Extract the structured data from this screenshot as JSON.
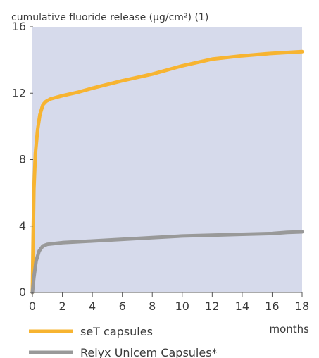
{
  "chart_data": {
    "type": "line",
    "ylabel": "cumulative fluoride release (µg/cm²) (1)",
    "xlabel": "months",
    "xlim": [
      0,
      18
    ],
    "ylim": [
      0,
      16
    ],
    "x_ticks": [
      "0",
      "2",
      "4",
      "6",
      "8",
      "10",
      "12",
      "14",
      "16",
      "18"
    ],
    "y_ticks": [
      "0",
      "4",
      "8",
      "12",
      "16"
    ],
    "grid": false,
    "legend_position": "bottom-left",
    "background": "#d6daeb",
    "series": [
      {
        "name": "seT capsules",
        "color": "#f7b431",
        "x": [
          0,
          0.05,
          0.1,
          0.2,
          0.35,
          0.5,
          0.7,
          0.9,
          1.2,
          1.6,
          2,
          3,
          4,
          6,
          8,
          10,
          12,
          14,
          16,
          17,
          18
        ],
        "y": [
          0,
          3.5,
          6.2,
          8.4,
          9.8,
          10.7,
          11.3,
          11.5,
          11.65,
          11.75,
          11.85,
          12.05,
          12.3,
          12.75,
          13.15,
          13.65,
          14.05,
          14.25,
          14.4,
          14.45,
          14.5
        ]
      },
      {
        "name": "Relyx Unicem Capsules*",
        "color": "#999999",
        "x": [
          0,
          0.1,
          0.25,
          0.45,
          0.7,
          1,
          1.5,
          2,
          3,
          4,
          6,
          8,
          10,
          12,
          14,
          16,
          17,
          18
        ],
        "y": [
          0,
          0.9,
          1.9,
          2.5,
          2.8,
          2.9,
          2.95,
          3.0,
          3.05,
          3.1,
          3.2,
          3.3,
          3.4,
          3.45,
          3.5,
          3.55,
          3.62,
          3.65
        ]
      }
    ]
  }
}
